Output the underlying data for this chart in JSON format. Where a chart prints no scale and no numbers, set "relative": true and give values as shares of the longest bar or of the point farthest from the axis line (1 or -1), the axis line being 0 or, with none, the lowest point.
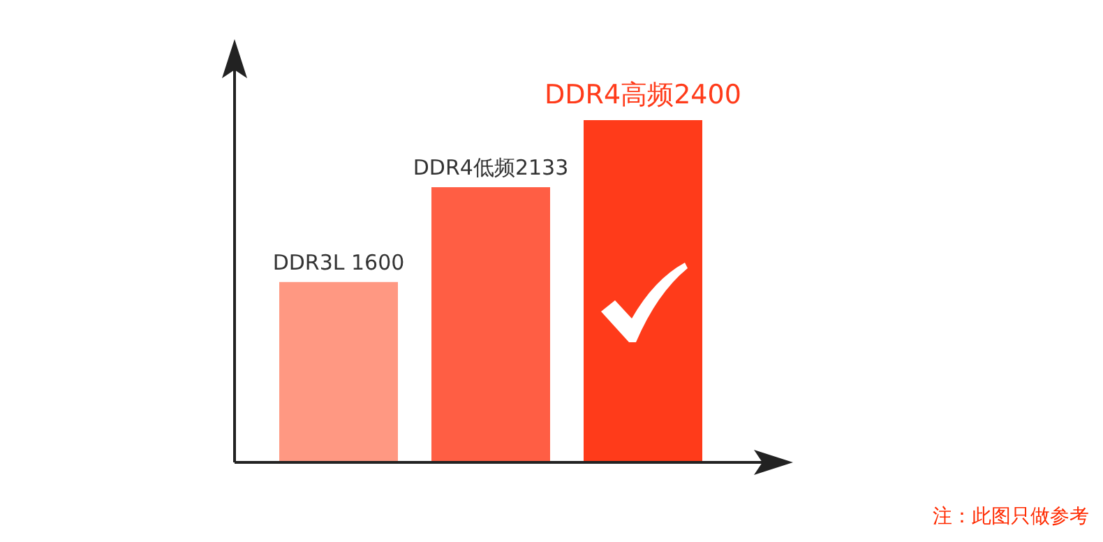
{
  "chart_data": {
    "type": "bar",
    "relative": true,
    "categories": [
      "DDR3L 1600",
      "DDR4低频2133",
      "DDR4高频2400"
    ],
    "values": [
      0.527,
      0.804,
      1
    ],
    "colors": [
      "#ff9882",
      "#ff5e44",
      "#ff3b1a"
    ],
    "annotations": [
      "注：此图只做参考"
    ]
  }
}
